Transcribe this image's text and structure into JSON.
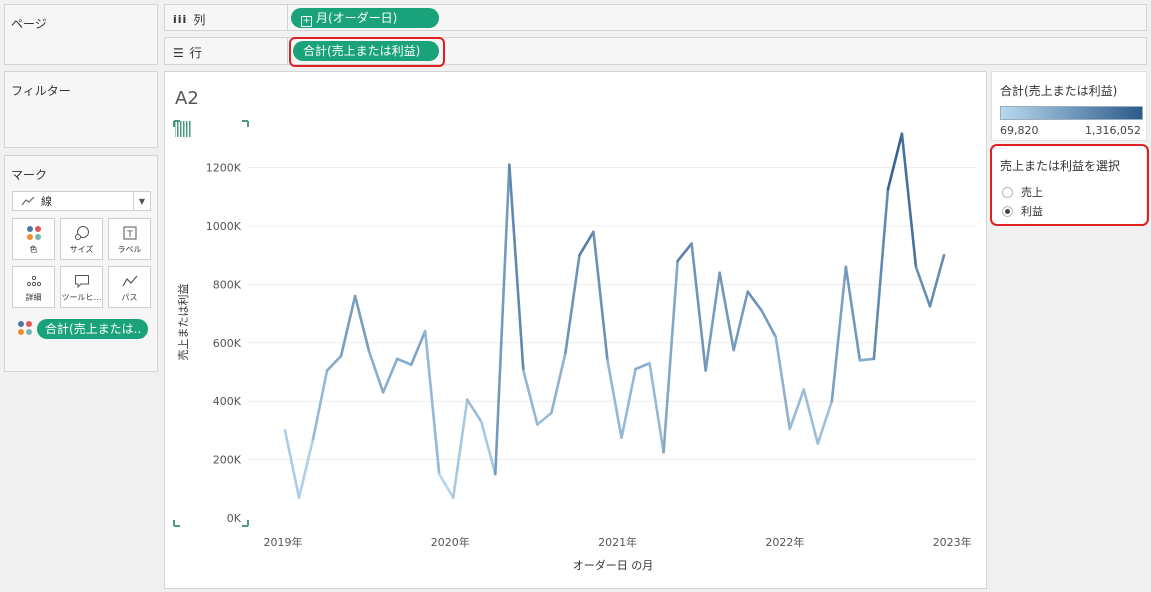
{
  "pages": {
    "title": "ページ"
  },
  "filters": {
    "title": "フィルター"
  },
  "marks": {
    "title": "マーク",
    "type": "線",
    "buttons": {
      "color": "色",
      "size": "サイズ",
      "label": "ラベル",
      "detail": "詳細",
      "tooltip": "ツールヒ…",
      "path": "パス"
    },
    "field_pill": "合計(売上または.."
  },
  "shelves": {
    "columns": {
      "label": "列",
      "pill": "月(オーダー日)"
    },
    "rows": {
      "label": "行",
      "pill": "合計(売上または利益)"
    }
  },
  "sheet": {
    "title": "A2"
  },
  "legend": {
    "title": "合計(売上または利益)",
    "min": "69,820",
    "max": "1,316,052",
    "color_low": "#b9d9ef",
    "color_high": "#2c5a8a"
  },
  "parameter": {
    "title": "売上または利益を選択",
    "options": [
      {
        "label": "売上",
        "selected": false
      },
      {
        "label": "利益",
        "selected": true
      }
    ]
  },
  "chart_data": {
    "type": "line",
    "xlabel": "オーダー日 の月",
    "ylabel": "売上または利益",
    "ylim": [
      0,
      1316052
    ],
    "y_ticks": [
      "0K",
      "200K",
      "400K",
      "600K",
      "800K",
      "1000K",
      "1200K"
    ],
    "x_ticks": [
      "2019年",
      "2020年",
      "2021年",
      "2022年",
      "2023年"
    ],
    "grid": true,
    "color_scale": [
      "#b9d9ef",
      "#2c5a8a"
    ],
    "series": [
      {
        "x": [
          "2019-01",
          "2019-02",
          "2019-03",
          "2019-04",
          "2019-05",
          "2019-06",
          "2019-07",
          "2019-08",
          "2019-09",
          "2019-10",
          "2019-11",
          "2019-12",
          "2020-01",
          "2020-02",
          "2020-03",
          "2020-04",
          "2020-05",
          "2020-06",
          "2020-07",
          "2020-08",
          "2020-09",
          "2020-10",
          "2020-11",
          "2020-12",
          "2021-01",
          "2021-02",
          "2021-03",
          "2021-04",
          "2021-05",
          "2021-06",
          "2021-07",
          "2021-08",
          "2021-09",
          "2021-10",
          "2021-11",
          "2021-12",
          "2022-01",
          "2022-02",
          "2022-03",
          "2022-04",
          "2022-05",
          "2022-06",
          "2022-07",
          "2022-08",
          "2022-09",
          "2022-10",
          "2022-11",
          "2022-12"
        ],
        "values": [
          300000,
          70000,
          270000,
          505000,
          555000,
          760000,
          570000,
          430000,
          545000,
          525000,
          640000,
          150000,
          70000,
          405000,
          330000,
          150000,
          1210000,
          505000,
          320000,
          360000,
          565000,
          900000,
          980000,
          540000,
          275000,
          510000,
          530000,
          225000,
          880000,
          940000,
          505000,
          840000,
          575000,
          775000,
          710000,
          620000,
          305000,
          440000,
          255000,
          400000,
          860000,
          540000,
          545000,
          1125000,
          1316052,
          860000,
          725000,
          900000
        ]
      }
    ]
  }
}
